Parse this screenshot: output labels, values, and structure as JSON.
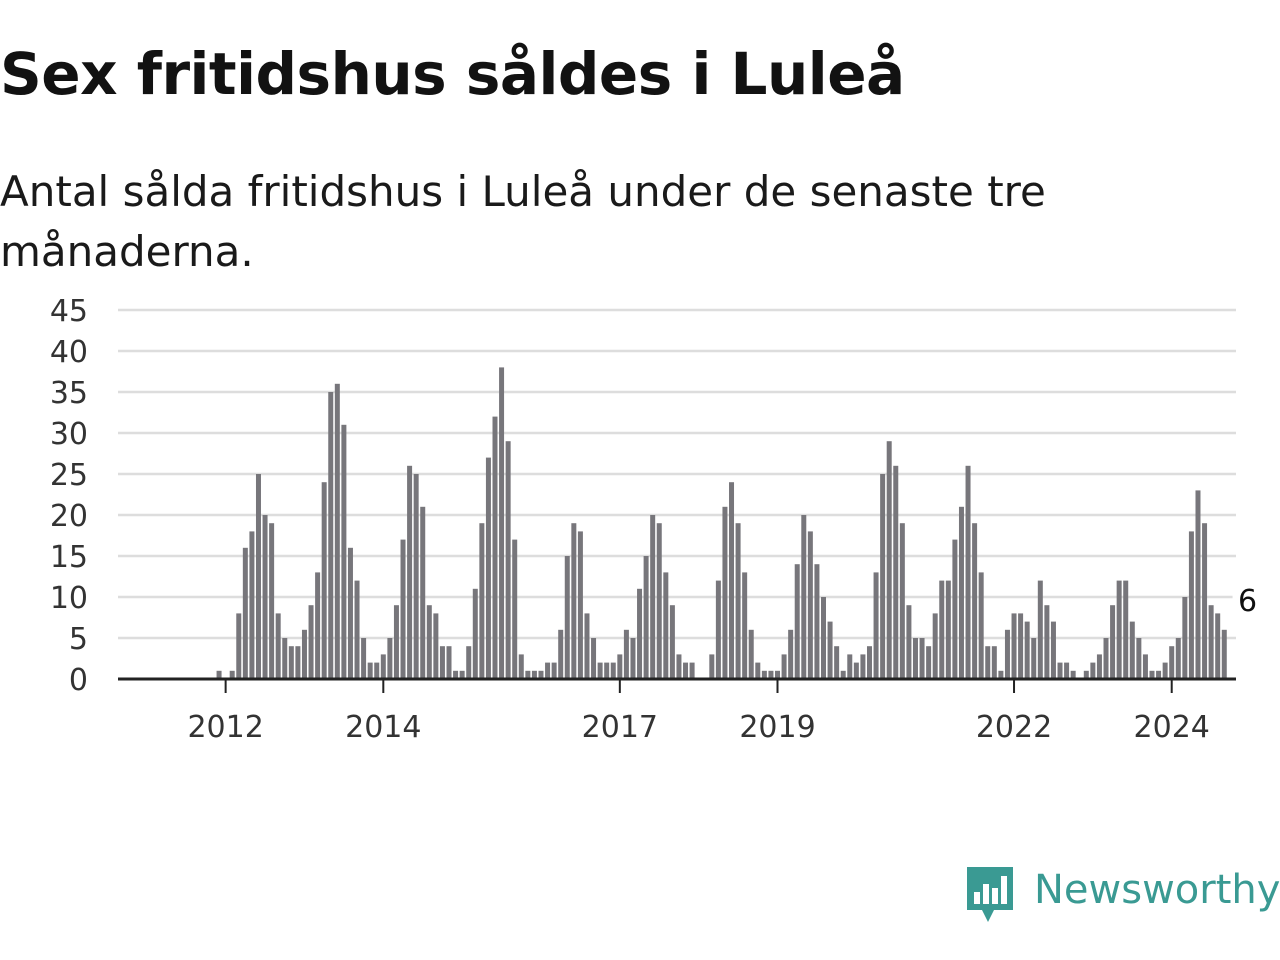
{
  "header": {
    "title": "Sex fritidshus såldes i Luleå",
    "subtitle": "Antal sålda fritidshus i Luleå under de senaste tre månaderna."
  },
  "brand": {
    "name": "Newsworthy",
    "color": "#3a9a93"
  },
  "colors": {
    "bar": "#77767b",
    "highlight": "#2aa39a",
    "grid": "#dddddd",
    "axis": "#222222"
  },
  "chart_data": {
    "type": "bar",
    "title": "Sex fritidshus såldes i Luleå",
    "subtitle": "Antal sålda fritidshus i Luleå under de senaste tre månaderna.",
    "xlabel": "",
    "ylabel": "",
    "ylim": [
      0,
      45
    ],
    "yticks": [
      0,
      5,
      10,
      15,
      20,
      25,
      30,
      35,
      40,
      45
    ],
    "xticks": [
      {
        "label": "2012",
        "index": 9
      },
      {
        "label": "2014",
        "index": 33
      },
      {
        "label": "2017",
        "index": 69
      },
      {
        "label": "2019",
        "index": 93
      },
      {
        "label": "2022",
        "index": 129
      },
      {
        "label": "2024",
        "index": 153
      }
    ],
    "grid": true,
    "annotation": {
      "label": "6",
      "index": 164
    },
    "values": [
      0,
      0,
      0,
      0,
      0,
      0,
      0,
      0,
      1,
      0,
      1,
      8,
      16,
      18,
      25,
      20,
      19,
      8,
      5,
      4,
      4,
      6,
      9,
      13,
      24,
      35,
      36,
      31,
      16,
      12,
      5,
      2,
      2,
      3,
      5,
      9,
      17,
      26,
      25,
      21,
      9,
      8,
      4,
      4,
      1,
      1,
      4,
      11,
      19,
      27,
      32,
      38,
      29,
      17,
      3,
      1,
      1,
      1,
      2,
      2,
      6,
      15,
      19,
      18,
      8,
      5,
      2,
      2,
      2,
      3,
      6,
      5,
      11,
      15,
      20,
      19,
      13,
      9,
      3,
      2,
      2,
      0,
      0,
      3,
      12,
      21,
      24,
      19,
      13,
      6,
      2,
      1,
      1,
      1,
      3,
      6,
      14,
      20,
      18,
      14,
      10,
      7,
      4,
      1,
      3,
      2,
      3,
      4,
      13,
      25,
      29,
      26,
      19,
      9,
      5,
      5,
      4,
      8,
      12,
      12,
      17,
      21,
      26,
      19,
      13,
      4,
      4,
      1,
      6,
      8,
      8,
      7,
      5,
      12,
      9,
      7,
      2,
      2,
      1,
      0,
      1,
      2,
      3,
      5,
      9,
      12,
      12,
      7,
      5,
      3,
      1,
      1,
      2,
      4,
      5,
      10,
      18,
      23,
      19,
      9,
      8,
      6
    ],
    "highlight_index": 165
  }
}
